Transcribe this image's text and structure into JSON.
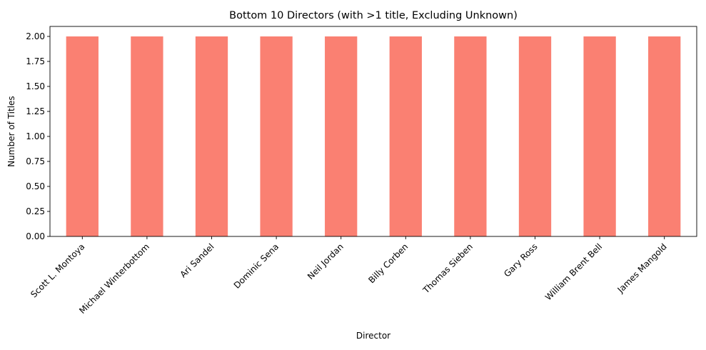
{
  "chart_data": {
    "type": "bar",
    "title": "Bottom 10 Directors (with >1 title, Excluding Unknown)",
    "xlabel": "Director",
    "ylabel": "Number of Titles",
    "categories": [
      "Scott L. Montoya",
      "Michael Winterbottom",
      "Ari Sandel",
      "Dominic Sena",
      "Neil Jordan",
      "Billy Corben",
      "Thomas Sieben",
      "Gary Ross",
      "William Brent Bell",
      "James Mangold"
    ],
    "values": [
      2,
      2,
      2,
      2,
      2,
      2,
      2,
      2,
      2,
      2
    ],
    "ylim": [
      0,
      2.1
    ],
    "yticks": [
      0.0,
      0.25,
      0.5,
      0.75,
      1.0,
      1.25,
      1.5,
      1.75,
      2.0
    ],
    "ytick_labels": [
      "0.00",
      "0.25",
      "0.50",
      "0.75",
      "1.00",
      "1.25",
      "1.50",
      "1.75",
      "2.00"
    ],
    "grid": false,
    "bar_color": "#fa8072"
  }
}
